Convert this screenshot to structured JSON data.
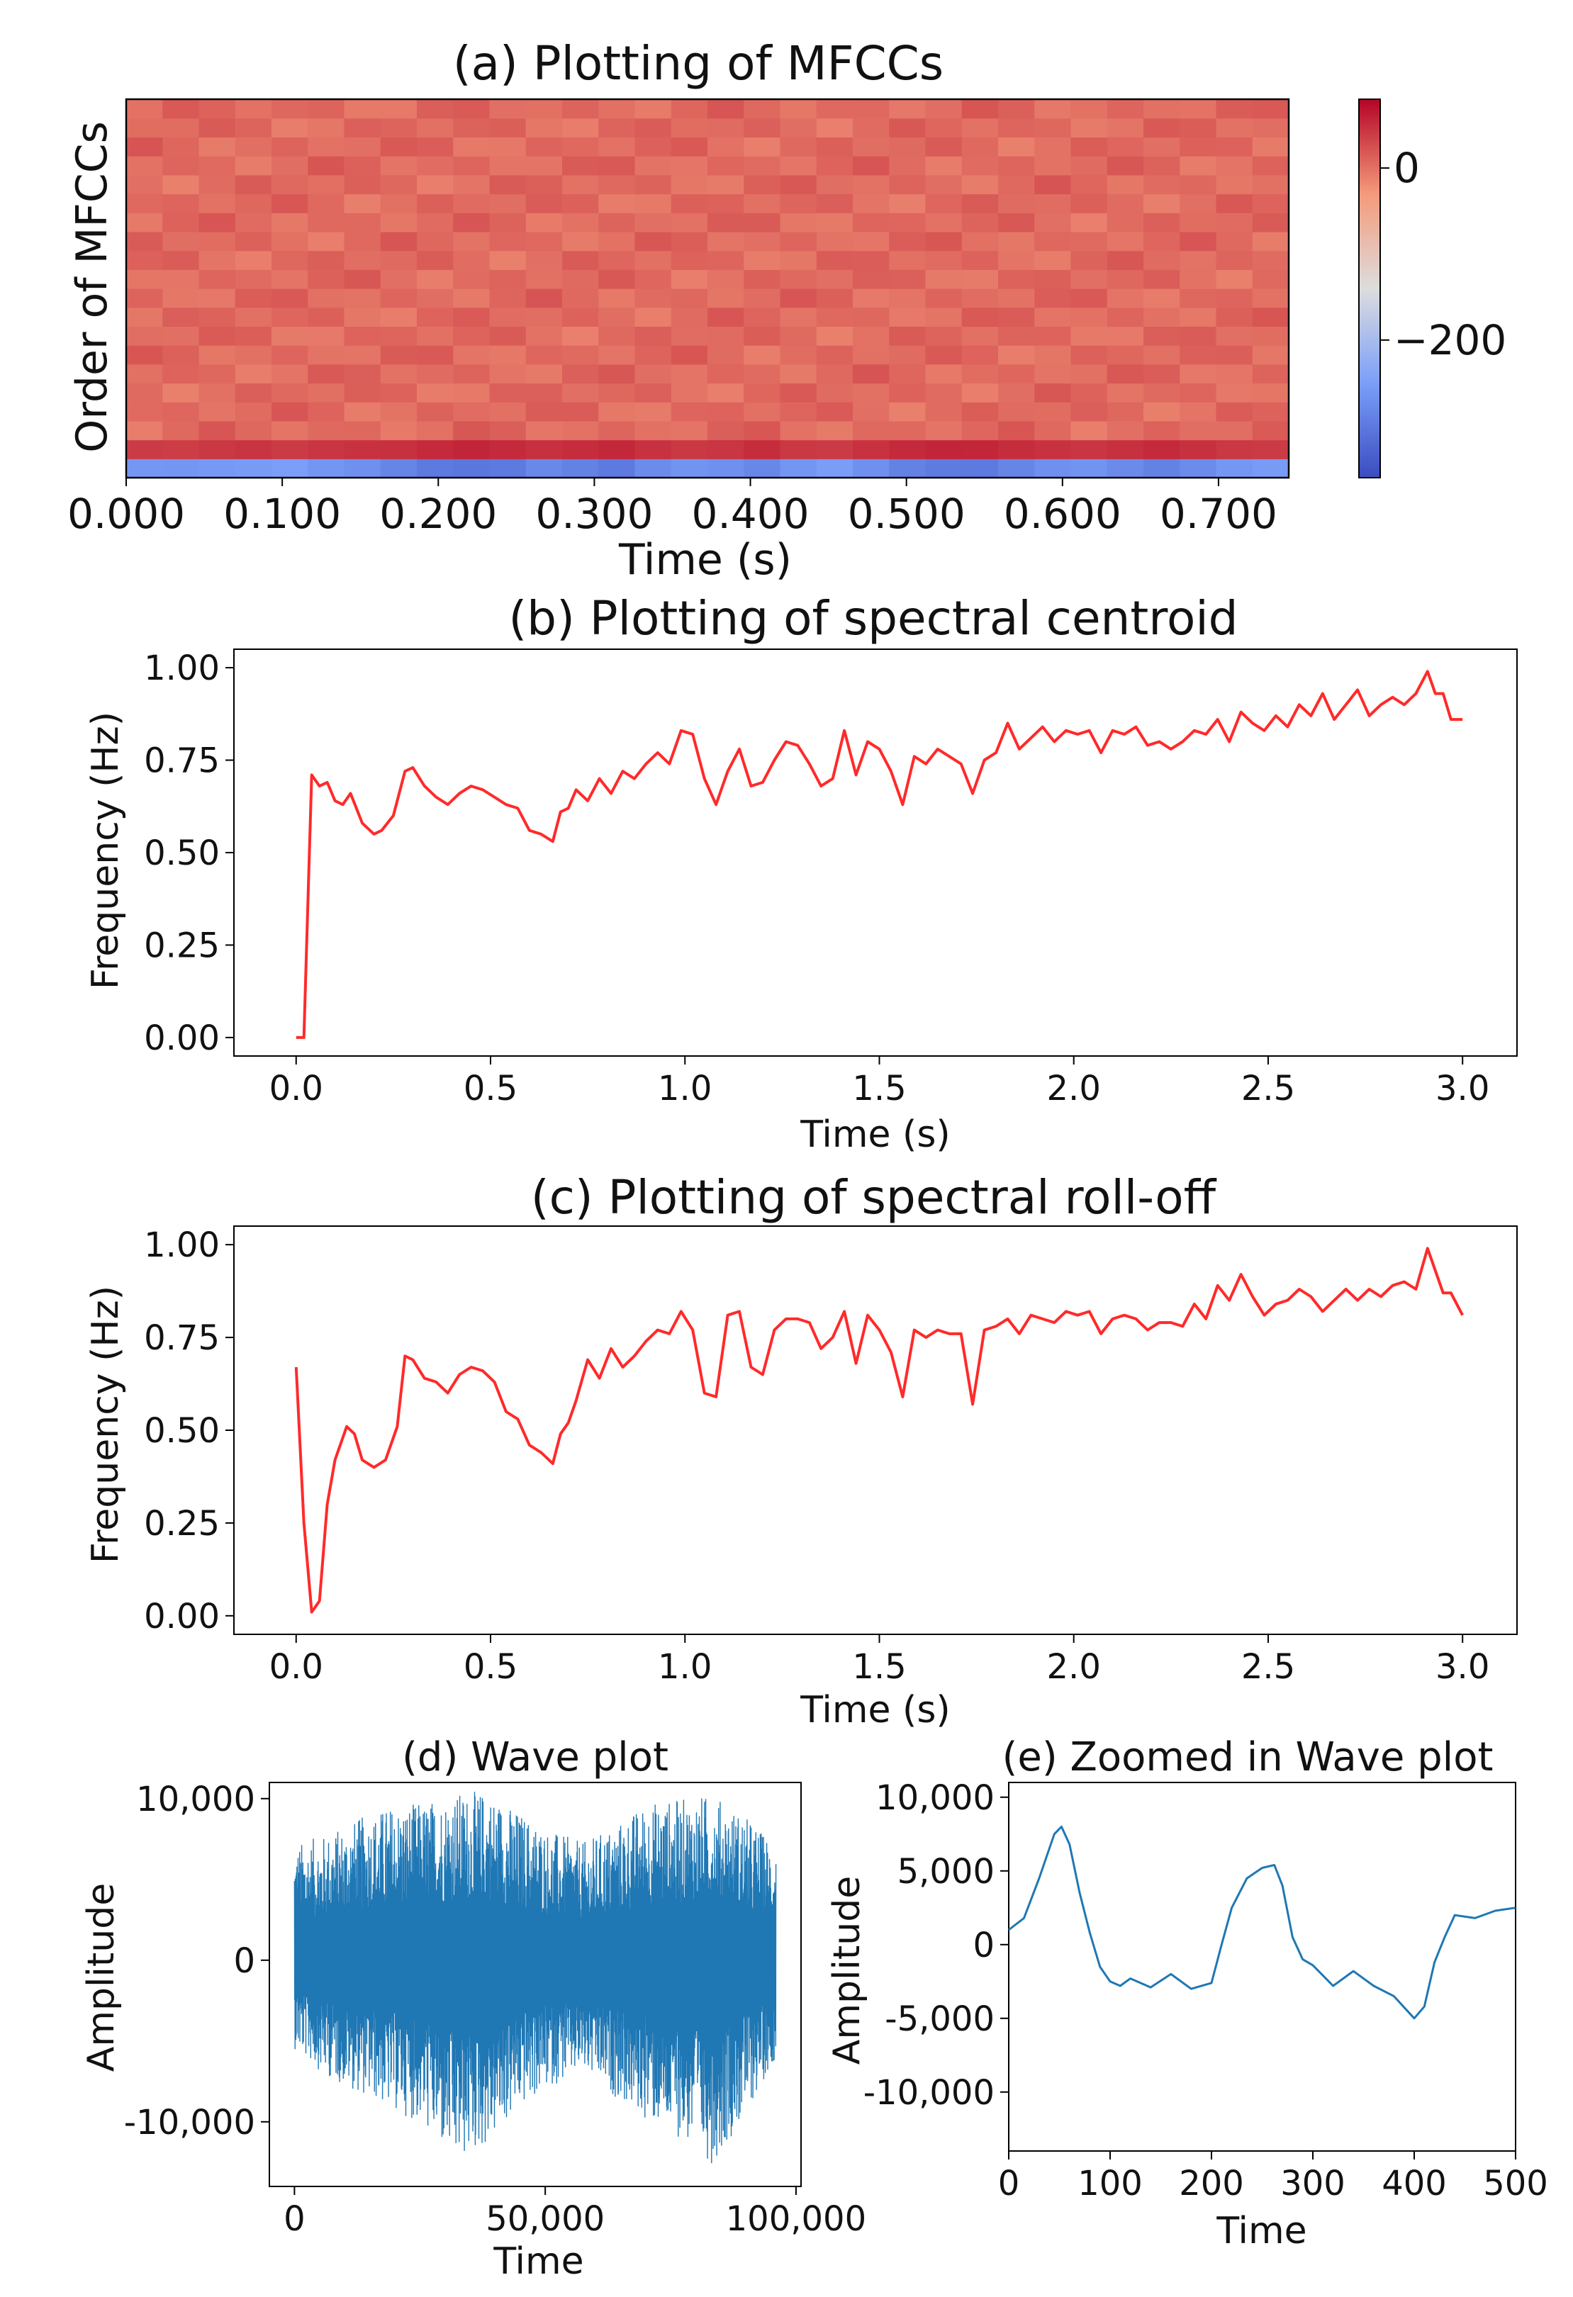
{
  "chart_data": [
    {
      "id": "mfcc",
      "type": "heatmap",
      "title": "(a) Plotting of MFCCs",
      "xlabel": "Time (s)",
      "ylabel": "Order of MFCCs",
      "x_ticks": [
        "0.000",
        "0.100",
        "0.200",
        "0.300",
        "0.400",
        "0.500",
        "0.600",
        "0.700"
      ],
      "x_tick_values": [
        0.0,
        0.1,
        0.2,
        0.3,
        0.4,
        0.5,
        0.6,
        0.7
      ],
      "xlim": [
        0.0,
        0.745
      ],
      "n_frames": 32,
      "n_coefficients": 20,
      "value_range": [
        -360,
        80
      ],
      "typical_value": 5,
      "coef0_values": [
        -260,
        -262,
        -258,
        -255,
        -250,
        -262,
        -270,
        -285,
        -300,
        -305,
        -300,
        -280,
        -290,
        -300,
        -275,
        -265,
        -270,
        -282,
        -262,
        -252,
        -270,
        -290,
        -298,
        -300,
        -285,
        -270,
        -265,
        -278,
        -290,
        -275,
        -260,
        -255
      ],
      "coef1_values": [
        40,
        38,
        42,
        45,
        40,
        44,
        46,
        48,
        52,
        56,
        52,
        48,
        50,
        54,
        46,
        42,
        44,
        50,
        42,
        40,
        46,
        52,
        56,
        55,
        50,
        46,
        44,
        48,
        52,
        48,
        42,
        40
      ],
      "colorbar": {
        "ticks": [
          "0",
          "−200"
        ],
        "tick_values": [
          0,
          -200
        ],
        "range": [
          -360,
          80
        ],
        "colormap": "coolwarm"
      }
    },
    {
      "id": "centroid",
      "type": "line",
      "title": "(b) Plotting of spectral centroid",
      "xlabel": "Time (s)",
      "ylabel": "Frequency (Hz)",
      "x_ticks": [
        "0.0",
        "0.5",
        "1.0",
        "1.5",
        "2.0",
        "2.5",
        "3.0"
      ],
      "y_ticks": [
        "0.00",
        "0.25",
        "0.50",
        "0.75",
        "1.00"
      ],
      "xlim": [
        -0.16,
        3.14
      ],
      "ylim": [
        -0.05,
        1.05
      ],
      "color": "#ff2a2a",
      "x": [
        0.0,
        0.02,
        0.04,
        0.06,
        0.08,
        0.1,
        0.12,
        0.14,
        0.17,
        0.2,
        0.22,
        0.25,
        0.28,
        0.3,
        0.33,
        0.36,
        0.39,
        0.42,
        0.45,
        0.48,
        0.51,
        0.54,
        0.57,
        0.6,
        0.63,
        0.66,
        0.68,
        0.7,
        0.72,
        0.75,
        0.78,
        0.81,
        0.84,
        0.87,
        0.9,
        0.93,
        0.96,
        0.99,
        1.02,
        1.05,
        1.08,
        1.11,
        1.14,
        1.17,
        1.2,
        1.23,
        1.26,
        1.29,
        1.32,
        1.35,
        1.38,
        1.41,
        1.44,
        1.47,
        1.5,
        1.53,
        1.56,
        1.59,
        1.62,
        1.65,
        1.68,
        1.71,
        1.74,
        1.77,
        1.8,
        1.83,
        1.86,
        1.89,
        1.92,
        1.95,
        1.98,
        2.01,
        2.04,
        2.07,
        2.1,
        2.13,
        2.16,
        2.19,
        2.22,
        2.25,
        2.28,
        2.31,
        2.34,
        2.37,
        2.4,
        2.43,
        2.46,
        2.49,
        2.52,
        2.55,
        2.58,
        2.61,
        2.64,
        2.67,
        2.7,
        2.73,
        2.76,
        2.79,
        2.82,
        2.85,
        2.88,
        2.91,
        2.93,
        2.95,
        2.97,
        3.0
      ],
      "y": [
        0.0,
        0.0,
        0.71,
        0.68,
        0.69,
        0.64,
        0.63,
        0.66,
        0.58,
        0.55,
        0.56,
        0.6,
        0.72,
        0.73,
        0.68,
        0.65,
        0.63,
        0.66,
        0.68,
        0.67,
        0.65,
        0.63,
        0.62,
        0.56,
        0.55,
        0.53,
        0.61,
        0.62,
        0.67,
        0.64,
        0.7,
        0.66,
        0.72,
        0.7,
        0.74,
        0.77,
        0.74,
        0.83,
        0.82,
        0.7,
        0.63,
        0.72,
        0.78,
        0.68,
        0.69,
        0.75,
        0.8,
        0.79,
        0.74,
        0.68,
        0.7,
        0.83,
        0.71,
        0.8,
        0.78,
        0.72,
        0.63,
        0.76,
        0.74,
        0.78,
        0.76,
        0.74,
        0.66,
        0.75,
        0.77,
        0.85,
        0.78,
        0.81,
        0.84,
        0.8,
        0.83,
        0.82,
        0.83,
        0.77,
        0.83,
        0.82,
        0.84,
        0.79,
        0.8,
        0.78,
        0.8,
        0.83,
        0.82,
        0.86,
        0.8,
        0.88,
        0.85,
        0.83,
        0.87,
        0.84,
        0.9,
        0.87,
        0.93,
        0.86,
        0.9,
        0.94,
        0.87,
        0.9,
        0.92,
        0.9,
        0.93,
        0.99,
        0.93,
        0.93,
        0.86,
        0.86
      ]
    },
    {
      "id": "rolloff",
      "type": "line",
      "title": "(c) Plotting of spectral roll-off",
      "xlabel": "Time (s)",
      "ylabel": "Frequency (Hz)",
      "x_ticks": [
        "0.0",
        "0.5",
        "1.0",
        "1.5",
        "2.0",
        "2.5",
        "3.0"
      ],
      "y_ticks": [
        "0.00",
        "0.25",
        "0.50",
        "0.75",
        "1.00"
      ],
      "xlim": [
        -0.16,
        3.14
      ],
      "ylim": [
        -0.05,
        1.05
      ],
      "color": "#ff2a2a",
      "x": [
        0.0,
        0.02,
        0.04,
        0.06,
        0.08,
        0.1,
        0.13,
        0.15,
        0.17,
        0.2,
        0.23,
        0.26,
        0.28,
        0.3,
        0.33,
        0.36,
        0.39,
        0.42,
        0.45,
        0.48,
        0.51,
        0.54,
        0.57,
        0.6,
        0.63,
        0.66,
        0.68,
        0.7,
        0.72,
        0.75,
        0.78,
        0.81,
        0.84,
        0.87,
        0.9,
        0.93,
        0.96,
        0.99,
        1.02,
        1.05,
        1.08,
        1.11,
        1.14,
        1.17,
        1.2,
        1.23,
        1.26,
        1.29,
        1.32,
        1.35,
        1.38,
        1.41,
        1.44,
        1.47,
        1.5,
        1.53,
        1.56,
        1.59,
        1.62,
        1.65,
        1.68,
        1.71,
        1.74,
        1.77,
        1.8,
        1.83,
        1.86,
        1.89,
        1.92,
        1.95,
        1.98,
        2.01,
        2.04,
        2.07,
        2.1,
        2.13,
        2.16,
        2.19,
        2.22,
        2.25,
        2.28,
        2.31,
        2.34,
        2.37,
        2.4,
        2.43,
        2.46,
        2.49,
        2.52,
        2.55,
        2.58,
        2.61,
        2.64,
        2.67,
        2.7,
        2.73,
        2.76,
        2.79,
        2.82,
        2.85,
        2.88,
        2.91,
        2.93,
        2.95,
        2.97,
        3.0
      ],
      "y": [
        0.67,
        0.25,
        0.01,
        0.04,
        0.3,
        0.42,
        0.51,
        0.49,
        0.42,
        0.4,
        0.42,
        0.51,
        0.7,
        0.69,
        0.64,
        0.63,
        0.6,
        0.65,
        0.67,
        0.66,
        0.63,
        0.55,
        0.53,
        0.46,
        0.44,
        0.41,
        0.49,
        0.52,
        0.58,
        0.69,
        0.64,
        0.72,
        0.67,
        0.7,
        0.74,
        0.77,
        0.76,
        0.82,
        0.77,
        0.6,
        0.59,
        0.81,
        0.82,
        0.67,
        0.65,
        0.77,
        0.8,
        0.8,
        0.79,
        0.72,
        0.75,
        0.82,
        0.68,
        0.81,
        0.77,
        0.71,
        0.59,
        0.77,
        0.75,
        0.77,
        0.76,
        0.76,
        0.57,
        0.77,
        0.78,
        0.8,
        0.76,
        0.81,
        0.8,
        0.79,
        0.82,
        0.81,
        0.82,
        0.76,
        0.8,
        0.81,
        0.8,
        0.77,
        0.79,
        0.79,
        0.78,
        0.84,
        0.8,
        0.89,
        0.85,
        0.92,
        0.86,
        0.81,
        0.84,
        0.85,
        0.88,
        0.86,
        0.82,
        0.85,
        0.88,
        0.85,
        0.88,
        0.86,
        0.89,
        0.9,
        0.88,
        0.99,
        0.93,
        0.87,
        0.87,
        0.81
      ]
    },
    {
      "id": "wave",
      "type": "line",
      "title": "(d) Wave plot",
      "xlabel": "Time",
      "ylabel": "Amplitude",
      "x_ticks": [
        "0",
        "50,000",
        "100,000"
      ],
      "x_tick_values": [
        0,
        50000,
        100000
      ],
      "y_ticks": [
        "10,000",
        "0",
        "-10,000"
      ],
      "y_tick_values": [
        10000,
        0,
        -10000
      ],
      "xlim": [
        -5000,
        101000
      ],
      "ylim": [
        -14000,
        11000
      ],
      "color": "#1f77b4",
      "n_samples": 96000,
      "envelope_upper": [
        7200,
        7800,
        8800,
        9600,
        9800,
        10400,
        10500,
        9200,
        8000,
        7300,
        8400,
        9800,
        10000,
        10300,
        9000,
        7200
      ],
      "envelope_lower": [
        -5500,
        -7200,
        -8200,
        -9200,
        -10200,
        -12700,
        -11500,
        -9200,
        -7800,
        -7000,
        -8500,
        -10000,
        -11000,
        -12600,
        -9800,
        -6000
      ]
    },
    {
      "id": "zoom",
      "type": "line",
      "title": "(e) Zoomed in Wave plot",
      "xlabel": "Time",
      "ylabel": "Amplitude",
      "x_ticks": [
        "0",
        "100",
        "200",
        "300",
        "400",
        "500"
      ],
      "x_tick_values": [
        0,
        100,
        200,
        300,
        400,
        500
      ],
      "y_ticks": [
        "10,000",
        "5,000",
        "0",
        "-5,000",
        "-10,000"
      ],
      "y_tick_values": [
        10000,
        5000,
        0,
        -5000,
        -10000
      ],
      "xlim": [
        0,
        500
      ],
      "ylim": [
        -14000,
        11000
      ],
      "color": "#1f77b4",
      "x": [
        0,
        15,
        30,
        45,
        52,
        60,
        70,
        80,
        90,
        100,
        110,
        120,
        140,
        160,
        180,
        200,
        210,
        220,
        235,
        250,
        262,
        270,
        280,
        290,
        300,
        320,
        340,
        360,
        380,
        400,
        410,
        420,
        430,
        440,
        460,
        480,
        500
      ],
      "y": [
        1000,
        1800,
        4500,
        7500,
        8000,
        6800,
        3500,
        800,
        -1500,
        -2500,
        -2800,
        -2300,
        -2900,
        -2000,
        -3000,
        -2600,
        0,
        2500,
        4500,
        5200,
        5400,
        4000,
        500,
        -1000,
        -1400,
        -2800,
        -1800,
        -2800,
        -3500,
        -5000,
        -4200,
        -1200,
        500,
        2000,
        1800,
        2300,
        2500
      ]
    }
  ]
}
